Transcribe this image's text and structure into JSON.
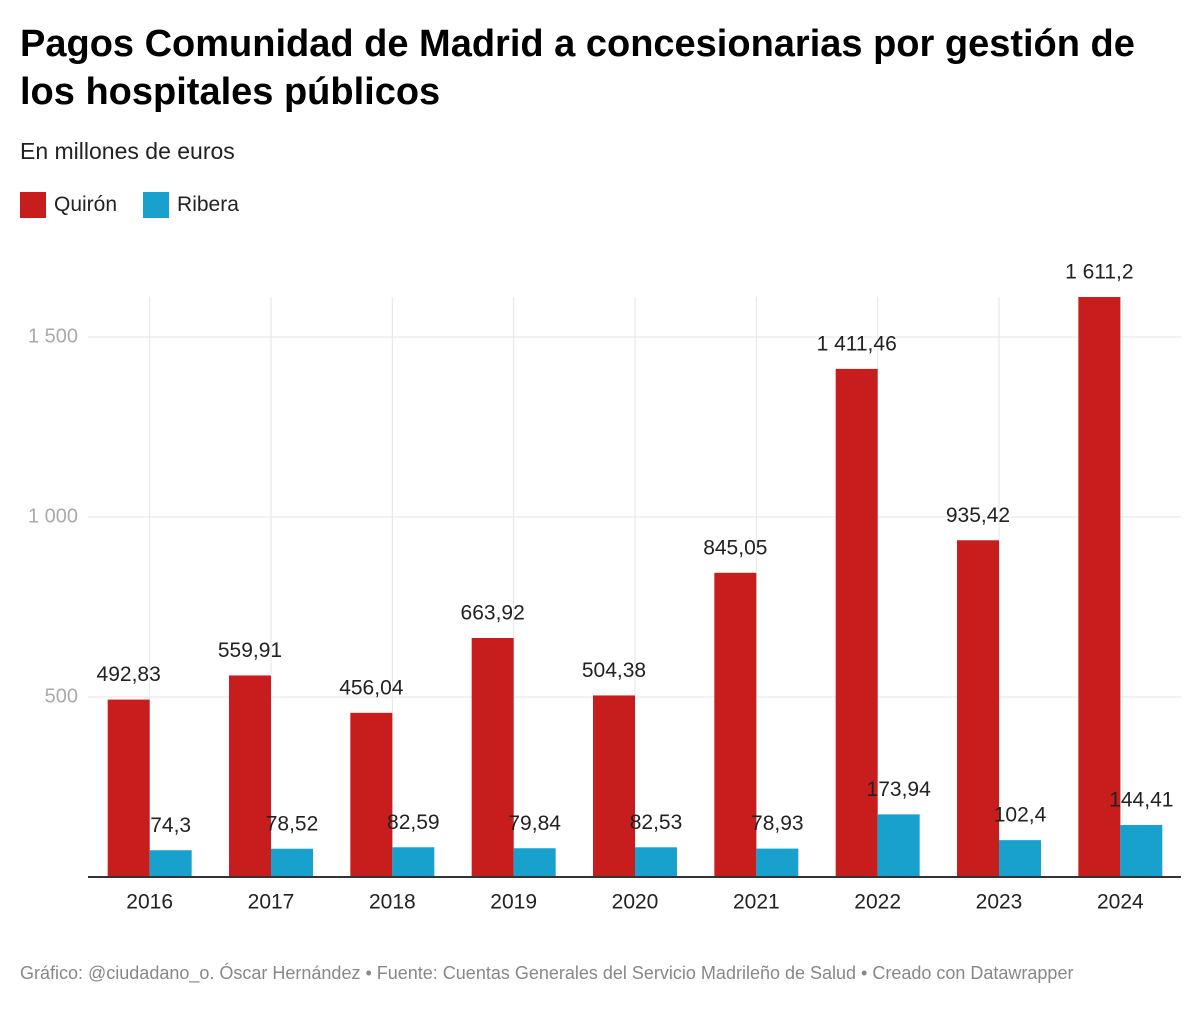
{
  "chart_data": {
    "type": "bar",
    "title": "Pagos Comunidad de Madrid a concesionarias por gestión de los hospitales públicos",
    "subtitle": "En millones de euros",
    "categories": [
      "2016",
      "2017",
      "2018",
      "2019",
      "2020",
      "2021",
      "2022",
      "2023",
      "2024"
    ],
    "series": [
      {
        "name": "Quirón",
        "color": "#c71e1d",
        "values": [
          492.83,
          559.91,
          456.04,
          663.92,
          504.38,
          845.05,
          1411.46,
          935.42,
          1611.2
        ],
        "value_labels": [
          "492,83",
          "559,91",
          "456,04",
          "663,92",
          "504,38",
          "845,05",
          "1 411,46",
          "935,42",
          "1 611,2"
        ]
      },
      {
        "name": "Ribera",
        "color": "#18a1cd",
        "values": [
          74.3,
          78.52,
          82.59,
          79.84,
          82.53,
          78.93,
          173.94,
          102.4,
          144.41
        ],
        "value_labels": [
          "74,3",
          "78,52",
          "82,59",
          "79,84",
          "82,53",
          "78,93",
          "173,94",
          "102,4",
          "144,41"
        ]
      }
    ],
    "ylim": [
      0,
      1611.2
    ],
    "yticks": [
      500,
      {
        "value": 1000,
        "label": "1 000"
      },
      {
        "value": 1500,
        "label": "1 500"
      }
    ],
    "grid": true,
    "footer": "Gráfico: @ciudadano_o. Óscar Hernández • Fuente: Cuentas Generales del Servicio Madrileño de Salud  • Creado con Datawrapper"
  }
}
